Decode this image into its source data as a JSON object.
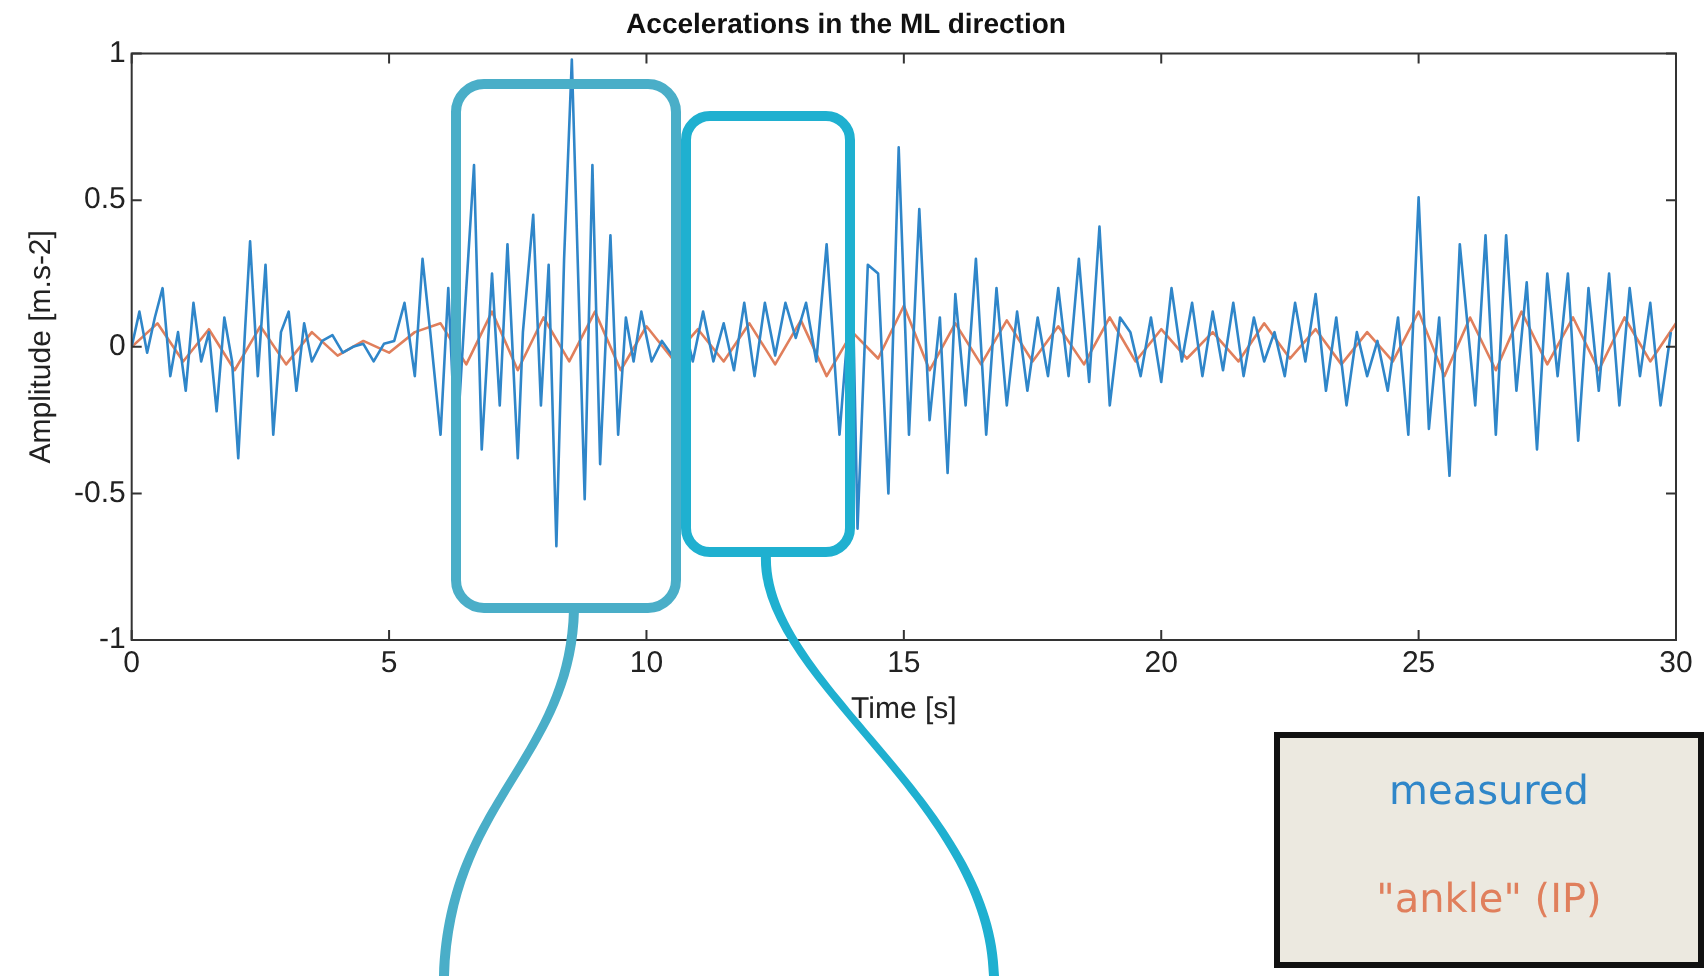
{
  "chart_data": {
    "type": "line",
    "title": "Accelerations in the ML direction",
    "xlabel": "Time [s]",
    "ylabel": "Amplitude [m.s-2]",
    "xlim": [
      0,
      30
    ],
    "xticks": [
      0,
      5,
      10,
      15,
      20,
      25,
      30
    ],
    "ylim": [
      -1,
      1
    ],
    "yticks": [
      -1,
      -0.5,
      0,
      0.5,
      1
    ],
    "grid": false,
    "legend": "bottom right",
    "marker": "none",
    "line_style": "solid",
    "series": [
      {
        "name": "measured",
        "color": "#2f86c9",
        "x": [
          0,
          0.15,
          0.3,
          0.45,
          0.6,
          0.75,
          0.9,
          1.05,
          1.2,
          1.35,
          1.5,
          1.65,
          1.8,
          1.95,
          2.07,
          2.2,
          2.3,
          2.45,
          2.6,
          2.75,
          2.9,
          3.05,
          3.2,
          3.35,
          3.5,
          3.7,
          3.9,
          4.1,
          4.3,
          4.5,
          4.7,
          4.9,
          5.1,
          5.3,
          5.5,
          5.65,
          5.8,
          6.0,
          6.15,
          6.3,
          6.5,
          6.65,
          6.8,
          7.0,
          7.15,
          7.3,
          7.5,
          7.6,
          7.8,
          7.95,
          8.1,
          8.25,
          8.4,
          8.55,
          8.8,
          8.95,
          9.1,
          9.3,
          9.45,
          9.6,
          9.75,
          9.9,
          10.1,
          10.3,
          10.5,
          10.7,
          10.9,
          11.1,
          11.3,
          11.5,
          11.7,
          11.9,
          12.1,
          12.3,
          12.5,
          12.7,
          12.9,
          13.1,
          13.3,
          13.5,
          13.75,
          14.0,
          14.1,
          14.3,
          14.5,
          14.7,
          14.9,
          15.1,
          15.3,
          15.5,
          15.7,
          15.85,
          16.0,
          16.2,
          16.4,
          16.6,
          16.8,
          17.0,
          17.2,
          17.4,
          17.6,
          17.8,
          18.0,
          18.2,
          18.4,
          18.6,
          18.8,
          19.0,
          19.2,
          19.4,
          19.6,
          19.8,
          20.0,
          20.2,
          20.4,
          20.6,
          20.8,
          21.0,
          21.2,
          21.4,
          21.6,
          21.8,
          22.0,
          22.2,
          22.4,
          22.6,
          22.8,
          23.0,
          23.2,
          23.4,
          23.6,
          23.8,
          24.0,
          24.2,
          24.4,
          24.6,
          24.8,
          25.0,
          25.2,
          25.4,
          25.6,
          25.8,
          26.1,
          26.3,
          26.5,
          26.7,
          26.9,
          27.1,
          27.3,
          27.5,
          27.7,
          27.9,
          28.1,
          28.3,
          28.5,
          28.7,
          28.9,
          29.1,
          29.3,
          29.5,
          29.7,
          29.9
        ],
        "values": [
          0,
          0.12,
          -0.02,
          0.1,
          0.2,
          -0.1,
          0.05,
          -0.15,
          0.15,
          -0.05,
          0.05,
          -0.22,
          0.1,
          -0.05,
          -0.38,
          0.05,
          0.36,
          -0.1,
          0.28,
          -0.3,
          0.05,
          0.12,
          -0.15,
          0.08,
          -0.05,
          0.02,
          0.04,
          -0.02,
          0,
          0.01,
          -0.05,
          0.01,
          0.02,
          0.15,
          -0.1,
          0.3,
          0.05,
          -0.3,
          0.2,
          -0.38,
          0.2,
          0.62,
          -0.35,
          0.25,
          -0.2,
          0.35,
          -0.38,
          0.05,
          0.45,
          -0.2,
          0.28,
          -0.68,
          0.3,
          0.98,
          -0.52,
          0.62,
          -0.4,
          0.38,
          -0.3,
          0.1,
          -0.05,
          0.12,
          -0.05,
          0.02,
          -0.03,
          0.1,
          -0.05,
          0.12,
          -0.05,
          0.08,
          -0.08,
          0.15,
          -0.1,
          0.15,
          -0.03,
          0.15,
          0.03,
          0.15,
          -0.05,
          0.35,
          -0.3,
          0.25,
          -0.62,
          0.28,
          0.25,
          -0.5,
          0.68,
          -0.3,
          0.47,
          -0.25,
          0.1,
          -0.43,
          0.18,
          -0.2,
          0.3,
          -0.3,
          0.2,
          -0.2,
          0.12,
          -0.15,
          0.1,
          -0.1,
          0.2,
          -0.1,
          0.3,
          -0.12,
          0.41,
          -0.2,
          0.1,
          0.05,
          -0.1,
          0.1,
          -0.12,
          0.2,
          -0.05,
          0.15,
          -0.1,
          0.12,
          -0.08,
          0.15,
          -0.1,
          0.1,
          -0.05,
          0.05,
          -0.1,
          0.15,
          -0.05,
          0.18,
          -0.15,
          0.1,
          -0.2,
          0.05,
          -0.1,
          0.02,
          -0.15,
          0.1,
          -0.3,
          0.51,
          -0.28,
          0.1,
          -0.44,
          0.35,
          -0.2,
          0.38,
          -0.3,
          0.38,
          -0.15,
          0.22,
          -0.35,
          0.25,
          -0.1,
          0.25,
          -0.32,
          0.2,
          -0.15,
          0.25,
          -0.2,
          0.2,
          -0.1,
          0.15,
          -0.2,
          0.05
        ]
      },
      {
        "name": "\"ankle\" (IP)",
        "color": "#e07f5c",
        "x": [
          0,
          0.5,
          1,
          1.5,
          2,
          2.5,
          3,
          3.5,
          4,
          4.5,
          5,
          5.5,
          6,
          6.5,
          7,
          7.5,
          8,
          8.5,
          9,
          9.5,
          10,
          10.5,
          11,
          11.5,
          12,
          12.5,
          13,
          13.5,
          14,
          14.5,
          15,
          15.5,
          16,
          16.5,
          17,
          17.5,
          18,
          18.5,
          19,
          19.5,
          20,
          20.5,
          21,
          21.5,
          22,
          22.5,
          23,
          23.5,
          24,
          24.5,
          25,
          25.5,
          26,
          26.5,
          27,
          27.5,
          28,
          28.5,
          29,
          29.5,
          30
        ],
        "values": [
          0,
          0.08,
          -0.05,
          0.06,
          -0.08,
          0.07,
          -0.06,
          0.05,
          -0.03,
          0.02,
          -0.02,
          0.05,
          0.08,
          -0.06,
          0.12,
          -0.08,
          0.1,
          -0.05,
          0.12,
          -0.08,
          0.07,
          -0.04,
          0.06,
          -0.05,
          0.08,
          -0.06,
          0.09,
          -0.1,
          0.05,
          -0.04,
          0.14,
          -0.08,
          0.08,
          -0.06,
          0.09,
          -0.05,
          0.07,
          -0.06,
          0.1,
          -0.05,
          0.06,
          -0.04,
          0.05,
          -0.05,
          0.08,
          -0.04,
          0.06,
          -0.06,
          0.05,
          -0.05,
          0.12,
          -0.1,
          0.1,
          -0.08,
          0.12,
          -0.06,
          0.1,
          -0.08,
          0.1,
          -0.05,
          0.08
        ]
      }
    ]
  }
}
